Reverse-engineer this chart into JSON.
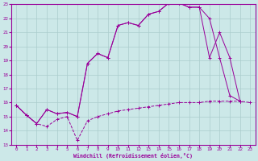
{
  "xlabel": "Windchill (Refroidissement éolien,°C)",
  "bg_color": "#cce8e8",
  "grid_color": "#aacccc",
  "line_color": "#990099",
  "xlim": [
    -0.5,
    23.5
  ],
  "ylim": [
    13,
    23
  ],
  "xticks": [
    0,
    1,
    2,
    3,
    4,
    5,
    6,
    7,
    8,
    9,
    10,
    11,
    12,
    13,
    14,
    15,
    16,
    17,
    18,
    19,
    20,
    21,
    22,
    23
  ],
  "yticks": [
    13,
    14,
    15,
    16,
    17,
    18,
    19,
    20,
    21,
    22,
    23
  ],
  "line1_x": [
    0,
    1,
    2,
    3,
    4,
    5,
    6,
    7,
    8,
    9,
    10,
    11,
    12,
    13,
    14,
    15,
    16,
    17,
    18,
    19,
    20,
    21,
    22,
    23
  ],
  "line1_y": [
    15.8,
    15.1,
    14.5,
    14.3,
    14.8,
    15.0,
    13.3,
    14.7,
    15.0,
    15.2,
    15.4,
    15.5,
    15.6,
    15.7,
    15.8,
    15.9,
    16.0,
    16.0,
    16.0,
    16.1,
    16.1,
    16.1,
    16.1,
    16.0
  ],
  "line2_x": [
    0,
    1,
    2,
    3,
    4,
    5,
    6,
    7,
    8,
    9,
    10,
    11,
    12,
    13,
    14,
    15,
    16,
    17,
    18,
    19,
    20,
    21,
    22
  ],
  "line2_y": [
    15.8,
    15.1,
    14.5,
    15.5,
    15.2,
    15.3,
    15.0,
    18.8,
    19.5,
    19.2,
    21.5,
    21.7,
    21.5,
    22.3,
    22.5,
    23.1,
    23.1,
    22.8,
    22.8,
    22.0,
    19.2,
    16.5,
    16.1
  ],
  "line3_x": [
    0,
    1,
    2,
    3,
    4,
    5,
    6,
    7,
    8,
    9,
    10,
    11,
    12,
    13,
    14,
    15,
    16,
    17,
    18,
    19,
    20,
    21,
    22
  ],
  "line3_y": [
    15.8,
    15.1,
    14.5,
    15.5,
    15.2,
    15.3,
    15.0,
    18.8,
    19.5,
    19.2,
    21.5,
    21.7,
    21.5,
    22.3,
    22.5,
    23.1,
    23.1,
    22.8,
    22.8,
    19.2,
    21.0,
    19.2,
    16.1
  ]
}
